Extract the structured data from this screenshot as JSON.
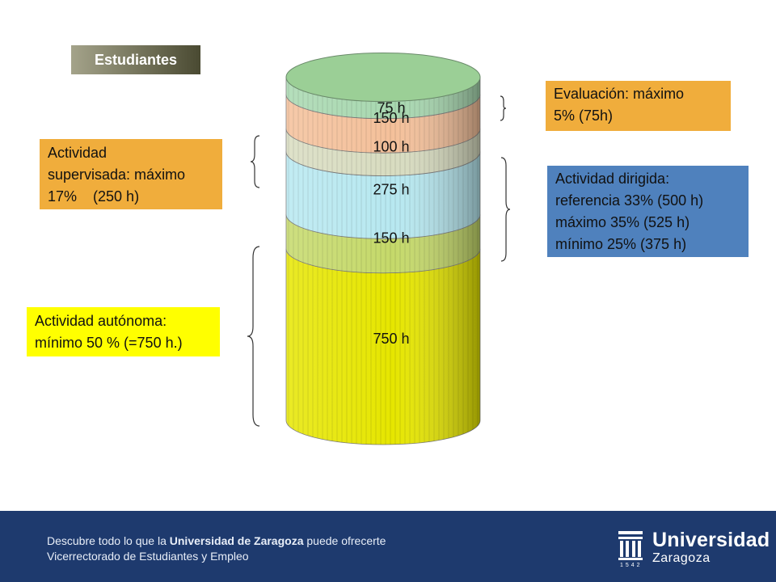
{
  "title": "Estudiantes",
  "boxes": {
    "supervisada": {
      "lines": [
        "Actividad",
        "supervisada: máximo",
        "17%    (250 h)"
      ],
      "color": "#f0ad3c"
    },
    "autonoma": {
      "lines": [
        "Actividad autónoma:",
        "mínimo 50 % (=750 h.)"
      ],
      "color": "#ffff00"
    },
    "evaluacion": {
      "lines": [
        "Evaluación: máximo",
        "5% (75h)"
      ],
      "color": "#f0ad3c"
    },
    "dirigida": {
      "lines": [
        "Actividad dirigida:",
        "referencia 33% (500 h)",
        "máximo 35% (525 h)",
        "mínimo 25% (375 h)"
      ],
      "color": "#4f81bd"
    }
  },
  "chart_data": {
    "type": "bar",
    "categories": [
      "750 h",
      "150 h",
      "275 h",
      "100 h",
      "150 h",
      "75 h"
    ],
    "values": [
      750,
      150,
      275,
      100,
      150,
      75
    ],
    "segment_colors": [
      "#e6e600",
      "#c5d96a",
      "#b7e8f0",
      "#d8dcc0",
      "#f4c09a",
      "#a8d8b0"
    ],
    "top_color": "#9bcf96",
    "title": "Estudiantes"
  },
  "footer": {
    "line1_prefix": "Descubre todo lo que la ",
    "line1_bold": "Universidad de Zaragoza",
    "line1_suffix": " puede ofrecerte",
    "line2": "Vicerrectorado de Estudiantes y Empleo",
    "logo_word1": "Universidad",
    "logo_word2": "Zaragoza",
    "logo_year": "1542"
  }
}
